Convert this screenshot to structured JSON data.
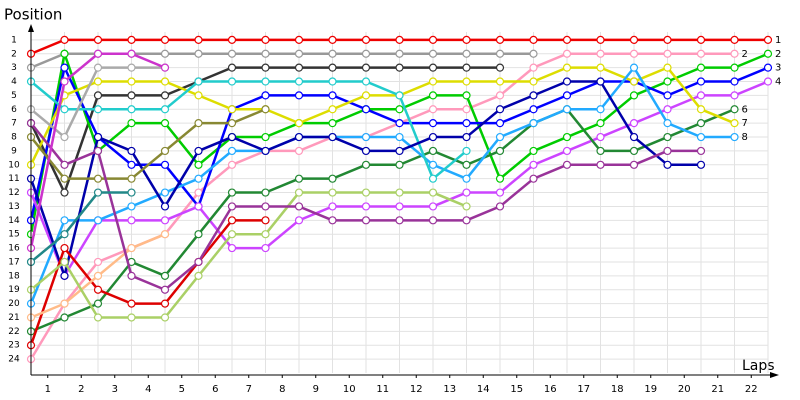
{
  "chart_data": {
    "type": "line",
    "title": "Position",
    "x_label": "Laps",
    "x": [
      0,
      1,
      2,
      3,
      4,
      5,
      6,
      7,
      8,
      9,
      10,
      11,
      12,
      13,
      14,
      15,
      16,
      17,
      18,
      19,
      20,
      21,
      22
    ],
    "xlim": [
      0,
      22
    ],
    "xticks": [
      {
        "value": 0.5,
        "label": "1"
      },
      {
        "value": 1.5,
        "label": "2"
      },
      {
        "value": 2.5,
        "label": "3"
      },
      {
        "value": 3.5,
        "label": "4"
      },
      {
        "value": 4.5,
        "label": "5"
      },
      {
        "value": 5.5,
        "label": "6"
      },
      {
        "value": 6.5,
        "label": "7"
      },
      {
        "value": 7.5,
        "label": "8"
      },
      {
        "value": 8.5,
        "label": "9"
      },
      {
        "value": 9.5,
        "label": "10"
      },
      {
        "value": 10.5,
        "label": "11"
      },
      {
        "value": 11.5,
        "label": "12"
      },
      {
        "value": 12.5,
        "label": "13"
      },
      {
        "value": 13.5,
        "label": "14"
      },
      {
        "value": 14.5,
        "label": "15"
      },
      {
        "value": 15.5,
        "label": "16"
      },
      {
        "value": 16.5,
        "label": "17"
      },
      {
        "value": 17.5,
        "label": "18"
      },
      {
        "value": 18.5,
        "label": "19"
      },
      {
        "value": 19.5,
        "label": "20"
      },
      {
        "value": 20.5,
        "label": "21"
      },
      {
        "value": 21.5,
        "label": "22"
      }
    ],
    "ylim": [
      25,
      0
    ],
    "yticks": [
      1,
      2,
      3,
      4,
      5,
      6,
      7,
      8,
      9,
      10,
      11,
      12,
      13,
      14,
      15,
      16,
      17,
      18,
      19,
      20,
      21,
      22,
      23,
      24
    ],
    "grid": true,
    "series": [
      {
        "color": "#ee0000",
        "values": [
          2,
          1,
          1,
          1,
          1,
          1,
          1,
          1,
          1,
          1,
          1,
          1,
          1,
          1,
          1,
          1,
          1,
          1,
          1,
          1,
          1,
          1,
          1
        ]
      },
      {
        "color": "#999999",
        "values": [
          3,
          2,
          2,
          2,
          2,
          2,
          2,
          2,
          2,
          2,
          2,
          2,
          2,
          2,
          2,
          2,
          null,
          null,
          null,
          null,
          null,
          null,
          null
        ]
      },
      {
        "color": "#333333",
        "values": [
          7,
          12,
          5,
          5,
          5,
          4,
          3,
          3,
          3,
          3,
          3,
          3,
          3,
          3,
          3,
          null,
          null,
          null,
          null,
          null,
          null,
          null,
          null
        ]
      },
      {
        "color": "#ff99bb",
        "values": [
          24,
          20,
          17,
          16,
          15,
          12,
          10,
          9,
          9,
          8,
          8,
          7,
          6,
          6,
          5,
          3,
          2,
          2,
          2,
          2,
          2,
          2,
          null
        ]
      },
      {
        "color": "#00cc00",
        "values": [
          15,
          2,
          9,
          7,
          7,
          10,
          8,
          8,
          7,
          7,
          6,
          6,
          5,
          5,
          11,
          9,
          8,
          7,
          5,
          4,
          3,
          3,
          2
        ]
      },
      {
        "color": "#0000ff",
        "values": [
          14,
          3,
          8,
          10,
          10,
          13,
          6,
          5,
          5,
          5,
          6,
          7,
          7,
          7,
          7,
          6,
          5,
          4,
          4,
          5,
          4,
          4,
          3
        ]
      },
      {
        "color": "#cc44ff",
        "values": [
          12,
          18,
          14,
          14,
          14,
          13,
          16,
          16,
          14,
          13,
          13,
          13,
          13,
          12,
          12,
          10,
          9,
          8,
          7,
          6,
          5,
          5,
          4
        ]
      },
      {
        "color": "#228833",
        "values": [
          22,
          21,
          20,
          17,
          18,
          15,
          12,
          12,
          11,
          11,
          10,
          10,
          9,
          10,
          9,
          7,
          6,
          9,
          9,
          8,
          7,
          6,
          null
        ]
      },
      {
        "color": "#dddd00",
        "values": [
          10,
          5,
          4,
          4,
          4,
          5,
          6,
          6,
          7,
          6,
          5,
          5,
          4,
          4,
          4,
          4,
          3,
          3,
          4,
          3,
          6,
          7,
          null
        ]
      },
      {
        "color": "#22aaff",
        "values": [
          20,
          14,
          14,
          13,
          12,
          11,
          9,
          9,
          8,
          8,
          8,
          8,
          10,
          11,
          8,
          7,
          6,
          6,
          3,
          7,
          8,
          8,
          null
        ]
      },
      {
        "color": "#22cccc",
        "values": [
          4,
          6,
          6,
          6,
          6,
          4,
          4,
          4,
          4,
          4,
          4,
          5,
          11,
          9,
          null,
          null,
          null,
          null,
          null,
          null,
          null,
          null,
          null
        ]
      },
      {
        "color": "#0000aa",
        "values": [
          11,
          18,
          8,
          9,
          13,
          9,
          8,
          9,
          8,
          8,
          9,
          9,
          8,
          8,
          6,
          5,
          4,
          4,
          8,
          10,
          10,
          null,
          null
        ]
      },
      {
        "color": "#dd0000",
        "values": [
          23,
          16,
          19,
          20,
          20,
          17,
          14,
          14,
          null,
          null,
          null,
          null,
          null,
          null,
          null,
          null,
          null,
          null,
          null,
          null,
          null,
          null,
          null
        ]
      },
      {
        "color": "#888833",
        "values": [
          8,
          11,
          11,
          11,
          9,
          7,
          7,
          6,
          null,
          null,
          null,
          null,
          null,
          null,
          null,
          null,
          null,
          null,
          null,
          null,
          null,
          null,
          null
        ]
      },
      {
        "color": "#ffbb88",
        "values": [
          21,
          20,
          18,
          16,
          15,
          null,
          null,
          null,
          null,
          null,
          null,
          null,
          null,
          null,
          null,
          null,
          null,
          null,
          null,
          null,
          null,
          null,
          null
        ]
      },
      {
        "color": "#aad066",
        "values": [
          19,
          17,
          21,
          21,
          21,
          18,
          15,
          15,
          12,
          12,
          12,
          12,
          12,
          13,
          null,
          null,
          null,
          null,
          null,
          null,
          null,
          null,
          null
        ]
      },
      {
        "color": "#993399",
        "values": [
          7,
          10,
          9,
          18,
          19,
          17,
          13,
          13,
          13,
          14,
          14,
          14,
          14,
          14,
          13,
          11,
          10,
          10,
          10,
          9,
          9,
          null,
          null
        ]
      },
      {
        "color": "#aaaaaa",
        "values": [
          6,
          8,
          3,
          3,
          3,
          null,
          null,
          null,
          null,
          null,
          null,
          null,
          null,
          null,
          null,
          null,
          null,
          null,
          null,
          null,
          null,
          null,
          null
        ]
      },
      {
        "color": "#cc33cc",
        "values": [
          16,
          4,
          2,
          2,
          3,
          null,
          null,
          null,
          null,
          null,
          null,
          null,
          null,
          null,
          null,
          null,
          null,
          null,
          null,
          null,
          null,
          null,
          null
        ]
      },
      {
        "color": "#228888",
        "values": [
          17,
          15,
          12,
          12,
          null,
          null,
          null,
          null,
          null,
          null,
          null,
          null,
          null,
          null,
          null,
          null,
          null,
          null,
          null,
          null,
          null,
          null,
          null
        ]
      }
    ]
  }
}
